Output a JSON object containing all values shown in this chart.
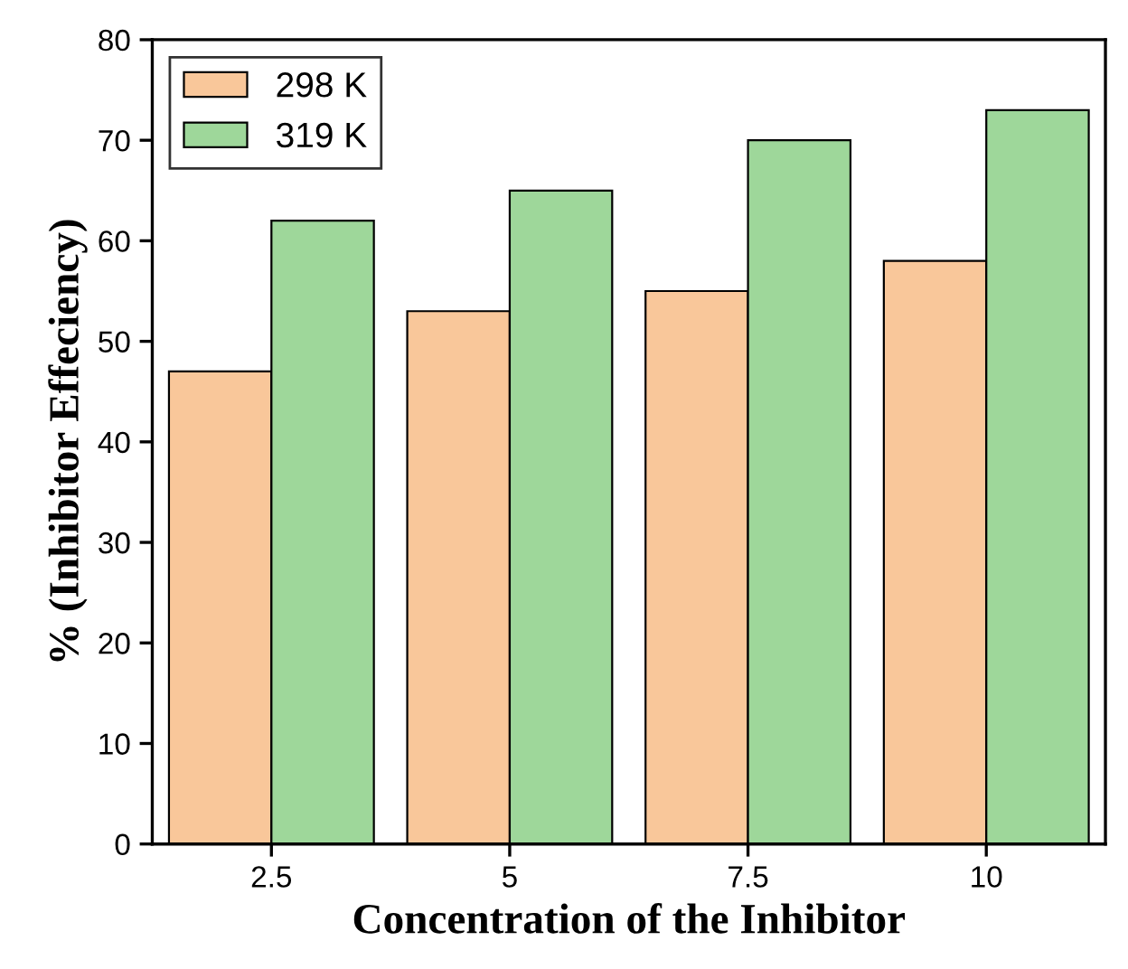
{
  "chart_data": {
    "type": "bar",
    "xlabel": "Concentration of the Inhibitor",
    "ylabel": "% (Inhibitor Effeciency)",
    "categories": [
      "2.5",
      "5",
      "7.5",
      "10"
    ],
    "series": [
      {
        "name": "298 K",
        "color": "#f9c79a",
        "values": [
          47,
          53,
          55,
          58
        ]
      },
      {
        "name": "319 K",
        "color": "#9ed79a",
        "values": [
          62,
          65,
          70,
          73
        ]
      }
    ],
    "ylim": [
      0,
      80
    ],
    "yticks": [
      0,
      10,
      20,
      30,
      40,
      50,
      60,
      70,
      80
    ],
    "grid": false,
    "legend": "top left"
  }
}
